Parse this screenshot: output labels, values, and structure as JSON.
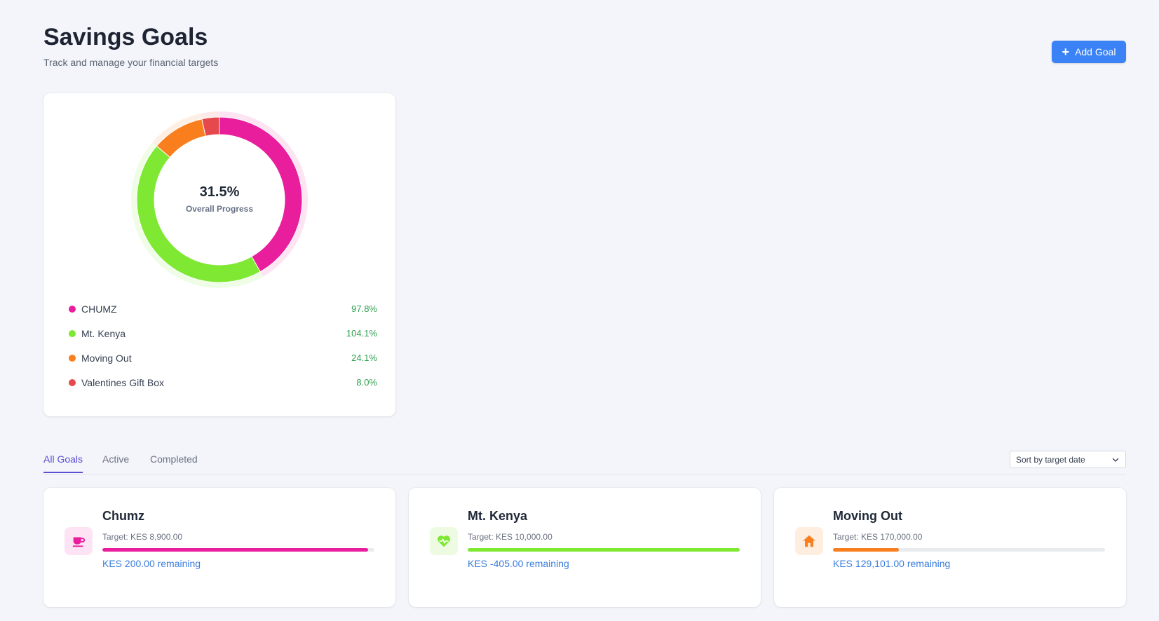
{
  "header": {
    "title": "Savings Goals",
    "subtitle": "Track and manage your financial targets",
    "add_goal_label": "Add Goal"
  },
  "overview": {
    "overall_progress_value": "31.5%",
    "overall_progress_label": "Overall Progress",
    "legend": [
      {
        "name": "CHUMZ",
        "percent": "97.8%",
        "color": "#e91e9c"
      },
      {
        "name": "Mt. Kenya",
        "percent": "104.1%",
        "color": "#7ee832"
      },
      {
        "name": "Moving Out",
        "percent": "24.1%",
        "color": "#f97f1e"
      },
      {
        "name": "Valentines Gift Box",
        "percent": "8.0%",
        "color": "#e5484d"
      }
    ]
  },
  "chart_data": {
    "type": "pie",
    "title": "",
    "categories": [
      "CHUMZ",
      "Mt. Kenya",
      "Moving Out",
      "Valentines Gift Box"
    ],
    "values": [
      97.8,
      104.1,
      24.1,
      8.0
    ],
    "colors": [
      "#e91e9c",
      "#7ee832",
      "#f97f1e",
      "#e5484d"
    ],
    "center_value": "31.5%",
    "legend_placement": "bottom"
  },
  "tabs": [
    {
      "label": "All Goals",
      "active": true
    },
    {
      "label": "Active",
      "active": false
    },
    {
      "label": "Completed",
      "active": false
    }
  ],
  "sort": {
    "selected": "Sort by target date"
  },
  "goals": [
    {
      "title": "Chumz",
      "target": "Target: KES 8,900.00",
      "remaining": "KES 200.00 remaining",
      "progress": 0.978,
      "color": "#e91e9c",
      "icon_bg": "#fde3f3",
      "icon": "coffee-cup-icon"
    },
    {
      "title": "Mt. Kenya",
      "target": "Target: KES 10,000.00",
      "remaining": "KES -405.00 remaining",
      "progress": 1.0,
      "color": "#7ee832",
      "icon_bg": "#eefbe3",
      "icon": "heart-pulse-icon"
    },
    {
      "title": "Moving Out",
      "target": "Target: KES 170,000.00",
      "remaining": "KES 129,101.00 remaining",
      "progress": 0.241,
      "color": "#f97f1e",
      "icon_bg": "#feeedf",
      "icon": "home-icon"
    }
  ]
}
